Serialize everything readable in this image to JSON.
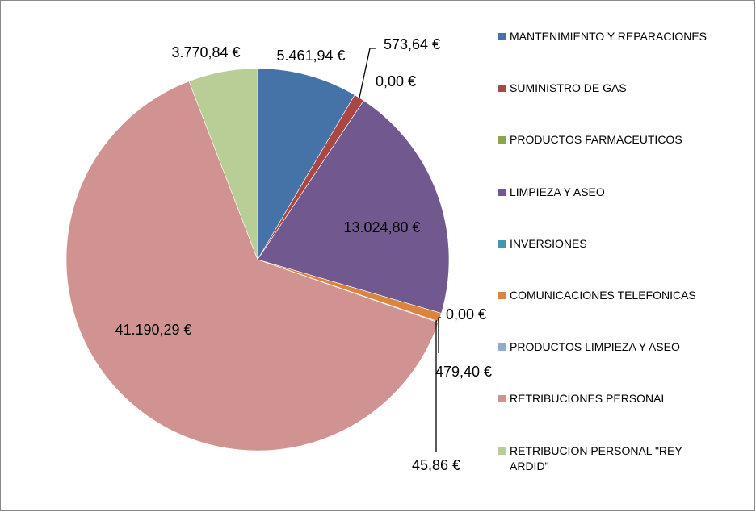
{
  "chart_data": {
    "type": "pie",
    "categories": [
      "MANTENIMIENTO Y REPARACIONES",
      "SUMINISTRO DE GAS",
      "PRODUCTOS FARMACEUTICOS",
      "LIMPIEZA Y ASEO",
      "INVERSIONES",
      "COMUNICACIONES TELEFONICAS",
      "PRODUCTOS LIMPIEZA Y ASEO",
      "RETRIBUCIONES PERSONAL",
      "RETRIBUCION PERSONAL \"REY ARDID\""
    ],
    "values": [
      5461.94,
      573.64,
      0,
      13024.8,
      0,
      479.4,
      45.86,
      41190.29,
      3770.84
    ],
    "value_labels": [
      "5.461,94 €",
      "573,64 €",
      "0,00 €",
      "13.024,80 €",
      "0,00 €",
      "479,40 €",
      "45,86 €",
      "41.190,29 €",
      "3.770,84 €"
    ],
    "colors": [
      "#4572a7",
      "#aa4643",
      "#89a54e",
      "#71588f",
      "#4198af",
      "#db843d",
      "#93a9cf",
      "#d19392",
      "#b9cd96"
    ],
    "legend": "right"
  }
}
